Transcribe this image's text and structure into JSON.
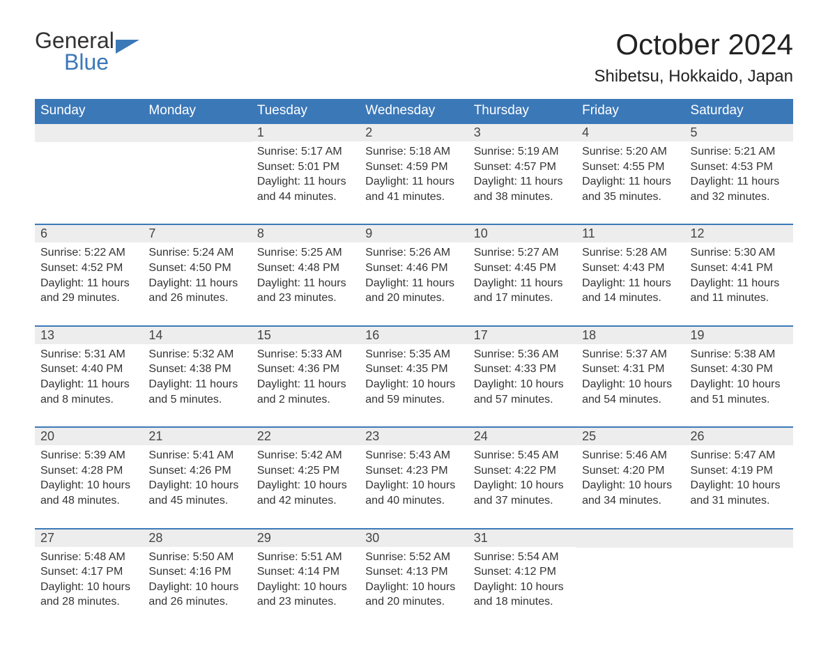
{
  "logo": {
    "word1": "General",
    "word2": "Blue"
  },
  "title": "October 2024",
  "location": "Shibetsu, Hokkaido, Japan",
  "colors": {
    "header_bg": "#3b78b8",
    "header_text": "#ffffff",
    "daynum_bg": "#ededed",
    "border": "#3b78b8",
    "text": "#333333",
    "logo_blue": "#3b78b8"
  },
  "weekdays": [
    "Sunday",
    "Monday",
    "Tuesday",
    "Wednesday",
    "Thursday",
    "Friday",
    "Saturday"
  ],
  "weeks": [
    [
      {
        "day": "",
        "sunrise": "",
        "sunset": "",
        "daylight": ""
      },
      {
        "day": "",
        "sunrise": "",
        "sunset": "",
        "daylight": ""
      },
      {
        "day": "1",
        "sunrise": "Sunrise: 5:17 AM",
        "sunset": "Sunset: 5:01 PM",
        "daylight": "Daylight: 11 hours and 44 minutes."
      },
      {
        "day": "2",
        "sunrise": "Sunrise: 5:18 AM",
        "sunset": "Sunset: 4:59 PM",
        "daylight": "Daylight: 11 hours and 41 minutes."
      },
      {
        "day": "3",
        "sunrise": "Sunrise: 5:19 AM",
        "sunset": "Sunset: 4:57 PM",
        "daylight": "Daylight: 11 hours and 38 minutes."
      },
      {
        "day": "4",
        "sunrise": "Sunrise: 5:20 AM",
        "sunset": "Sunset: 4:55 PM",
        "daylight": "Daylight: 11 hours and 35 minutes."
      },
      {
        "day": "5",
        "sunrise": "Sunrise: 5:21 AM",
        "sunset": "Sunset: 4:53 PM",
        "daylight": "Daylight: 11 hours and 32 minutes."
      }
    ],
    [
      {
        "day": "6",
        "sunrise": "Sunrise: 5:22 AM",
        "sunset": "Sunset: 4:52 PM",
        "daylight": "Daylight: 11 hours and 29 minutes."
      },
      {
        "day": "7",
        "sunrise": "Sunrise: 5:24 AM",
        "sunset": "Sunset: 4:50 PM",
        "daylight": "Daylight: 11 hours and 26 minutes."
      },
      {
        "day": "8",
        "sunrise": "Sunrise: 5:25 AM",
        "sunset": "Sunset: 4:48 PM",
        "daylight": "Daylight: 11 hours and 23 minutes."
      },
      {
        "day": "9",
        "sunrise": "Sunrise: 5:26 AM",
        "sunset": "Sunset: 4:46 PM",
        "daylight": "Daylight: 11 hours and 20 minutes."
      },
      {
        "day": "10",
        "sunrise": "Sunrise: 5:27 AM",
        "sunset": "Sunset: 4:45 PM",
        "daylight": "Daylight: 11 hours and 17 minutes."
      },
      {
        "day": "11",
        "sunrise": "Sunrise: 5:28 AM",
        "sunset": "Sunset: 4:43 PM",
        "daylight": "Daylight: 11 hours and 14 minutes."
      },
      {
        "day": "12",
        "sunrise": "Sunrise: 5:30 AM",
        "sunset": "Sunset: 4:41 PM",
        "daylight": "Daylight: 11 hours and 11 minutes."
      }
    ],
    [
      {
        "day": "13",
        "sunrise": "Sunrise: 5:31 AM",
        "sunset": "Sunset: 4:40 PM",
        "daylight": "Daylight: 11 hours and 8 minutes."
      },
      {
        "day": "14",
        "sunrise": "Sunrise: 5:32 AM",
        "sunset": "Sunset: 4:38 PM",
        "daylight": "Daylight: 11 hours and 5 minutes."
      },
      {
        "day": "15",
        "sunrise": "Sunrise: 5:33 AM",
        "sunset": "Sunset: 4:36 PM",
        "daylight": "Daylight: 11 hours and 2 minutes."
      },
      {
        "day": "16",
        "sunrise": "Sunrise: 5:35 AM",
        "sunset": "Sunset: 4:35 PM",
        "daylight": "Daylight: 10 hours and 59 minutes."
      },
      {
        "day": "17",
        "sunrise": "Sunrise: 5:36 AM",
        "sunset": "Sunset: 4:33 PM",
        "daylight": "Daylight: 10 hours and 57 minutes."
      },
      {
        "day": "18",
        "sunrise": "Sunrise: 5:37 AM",
        "sunset": "Sunset: 4:31 PM",
        "daylight": "Daylight: 10 hours and 54 minutes."
      },
      {
        "day": "19",
        "sunrise": "Sunrise: 5:38 AM",
        "sunset": "Sunset: 4:30 PM",
        "daylight": "Daylight: 10 hours and 51 minutes."
      }
    ],
    [
      {
        "day": "20",
        "sunrise": "Sunrise: 5:39 AM",
        "sunset": "Sunset: 4:28 PM",
        "daylight": "Daylight: 10 hours and 48 minutes."
      },
      {
        "day": "21",
        "sunrise": "Sunrise: 5:41 AM",
        "sunset": "Sunset: 4:26 PM",
        "daylight": "Daylight: 10 hours and 45 minutes."
      },
      {
        "day": "22",
        "sunrise": "Sunrise: 5:42 AM",
        "sunset": "Sunset: 4:25 PM",
        "daylight": "Daylight: 10 hours and 42 minutes."
      },
      {
        "day": "23",
        "sunrise": "Sunrise: 5:43 AM",
        "sunset": "Sunset: 4:23 PM",
        "daylight": "Daylight: 10 hours and 40 minutes."
      },
      {
        "day": "24",
        "sunrise": "Sunrise: 5:45 AM",
        "sunset": "Sunset: 4:22 PM",
        "daylight": "Daylight: 10 hours and 37 minutes."
      },
      {
        "day": "25",
        "sunrise": "Sunrise: 5:46 AM",
        "sunset": "Sunset: 4:20 PM",
        "daylight": "Daylight: 10 hours and 34 minutes."
      },
      {
        "day": "26",
        "sunrise": "Sunrise: 5:47 AM",
        "sunset": "Sunset: 4:19 PM",
        "daylight": "Daylight: 10 hours and 31 minutes."
      }
    ],
    [
      {
        "day": "27",
        "sunrise": "Sunrise: 5:48 AM",
        "sunset": "Sunset: 4:17 PM",
        "daylight": "Daylight: 10 hours and 28 minutes."
      },
      {
        "day": "28",
        "sunrise": "Sunrise: 5:50 AM",
        "sunset": "Sunset: 4:16 PM",
        "daylight": "Daylight: 10 hours and 26 minutes."
      },
      {
        "day": "29",
        "sunrise": "Sunrise: 5:51 AM",
        "sunset": "Sunset: 4:14 PM",
        "daylight": "Daylight: 10 hours and 23 minutes."
      },
      {
        "day": "30",
        "sunrise": "Sunrise: 5:52 AM",
        "sunset": "Sunset: 4:13 PM",
        "daylight": "Daylight: 10 hours and 20 minutes."
      },
      {
        "day": "31",
        "sunrise": "Sunrise: 5:54 AM",
        "sunset": "Sunset: 4:12 PM",
        "daylight": "Daylight: 10 hours and 18 minutes."
      },
      {
        "day": "",
        "sunrise": "",
        "sunset": "",
        "daylight": ""
      },
      {
        "day": "",
        "sunrise": "",
        "sunset": "",
        "daylight": ""
      }
    ]
  ]
}
